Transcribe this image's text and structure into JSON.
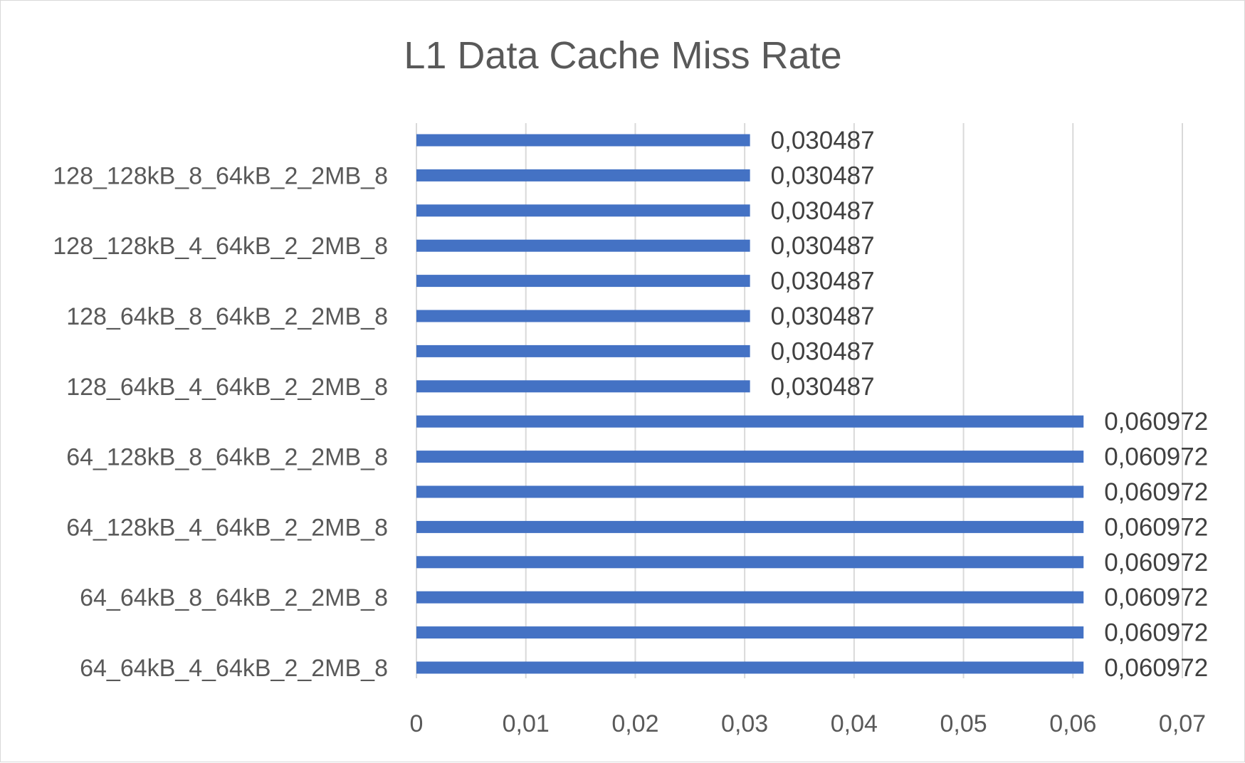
{
  "chart_data": {
    "type": "bar",
    "orientation": "horizontal",
    "title": "L1 Data Cache Miss Rate",
    "categories_top_to_bottom": [
      "",
      "128_128kB_8_64kB_2_2MB_8",
      "",
      "128_128kB_4_64kB_2_2MB_8",
      "",
      "128_64kB_8_64kB_2_2MB_8",
      "",
      "128_64kB_4_64kB_2_2MB_8",
      "",
      "64_128kB_8_64kB_2_2MB_8",
      "",
      "64_128kB_4_64kB_2_2MB_8",
      "",
      "64_64kB_8_64kB_2_2MB_8",
      "",
      "64_64kB_4_64kB_2_2MB_8"
    ],
    "values_top_to_bottom": [
      0.030487,
      0.030487,
      0.030487,
      0.030487,
      0.030487,
      0.030487,
      0.030487,
      0.030487,
      0.060972,
      0.060972,
      0.060972,
      0.060972,
      0.060972,
      0.060972,
      0.060972,
      0.060972
    ],
    "data_labels_top_to_bottom": [
      "0,030487",
      "0,030487",
      "0,030487",
      "0,030487",
      "0,030487",
      "0,030487",
      "0,030487",
      "0,030487",
      "0,060972",
      "0,060972",
      "0,060972",
      "0,060972",
      "0,060972",
      "0,060972",
      "0,060972",
      "0,060972"
    ],
    "x_ticks": [
      "0",
      "0,01",
      "0,02",
      "0,03",
      "0,04",
      "0,05",
      "0,06",
      "0,07"
    ],
    "xlim": [
      0,
      0.07
    ],
    "grid": true,
    "legend": "none",
    "bar_color": "#4472c4",
    "grid_color": "#d9d9d9"
  }
}
